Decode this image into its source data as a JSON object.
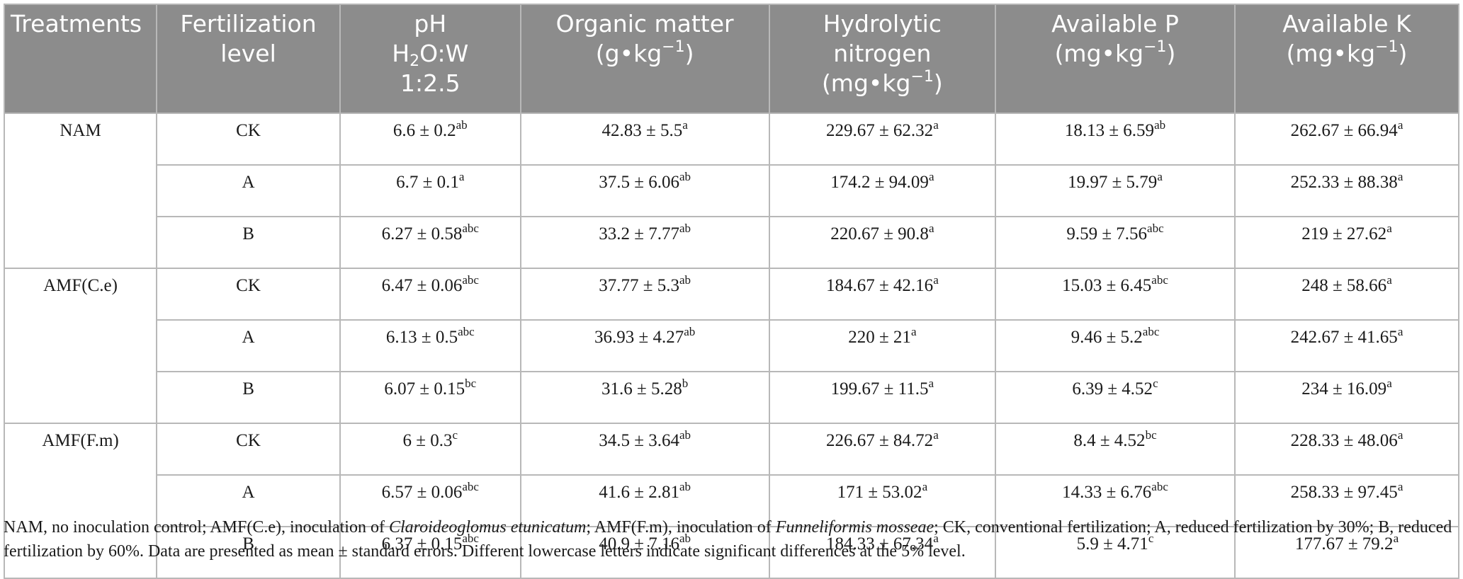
{
  "headers": {
    "treatments": "Treatments",
    "fert_level": [
      "Fertilization",
      "level"
    ],
    "ph": {
      "l1": "pH",
      "l2_pre": "H",
      "l2_sub": "2",
      "l2_post": "O:W",
      "l3": "1:2.5"
    },
    "om": {
      "l1": "Organic matter",
      "l2_pre": "(g•kg",
      "l2_sup": "−1",
      "l2_post": ")"
    },
    "hn": {
      "l1": "Hydrolytic",
      "l2": "nitrogen",
      "l3_pre": "(mg•kg",
      "l3_sup": "−1",
      "l3_post": ")"
    },
    "ap": {
      "l1": "Available P",
      "l2_pre": "(mg•kg",
      "l2_sup": "−1",
      "l2_post": ")"
    },
    "ak": {
      "l1": "Available K",
      "l2_pre": "(mg•kg",
      "l2_sup": "−1",
      "l2_post": ")"
    }
  },
  "groups": [
    {
      "treatment": "NAM",
      "rows": [
        {
          "level": "CK",
          "cells": [
            [
              "6.6 ± 0.2",
              "ab"
            ],
            [
              "42.83 ± 5.5",
              "a"
            ],
            [
              "229.67 ± 62.32",
              "a"
            ],
            [
              "18.13 ± 6.59",
              "ab"
            ],
            [
              "262.67 ± 66.94",
              "a"
            ]
          ]
        },
        {
          "level": "A",
          "cells": [
            [
              "6.7 ± 0.1",
              "a"
            ],
            [
              "37.5 ± 6.06",
              "ab"
            ],
            [
              "174.2 ± 94.09",
              "a"
            ],
            [
              "19.97 ± 5.79",
              "a"
            ],
            [
              "252.33 ± 88.38",
              "a"
            ]
          ]
        },
        {
          "level": "B",
          "cells": [
            [
              "6.27 ± 0.58",
              "abc"
            ],
            [
              "33.2 ± 7.77",
              "ab"
            ],
            [
              "220.67 ± 90.8",
              "a"
            ],
            [
              "9.59 ± 7.56",
              "abc"
            ],
            [
              "219 ± 27.62",
              "a"
            ]
          ]
        }
      ]
    },
    {
      "treatment": "AMF(C.e)",
      "rows": [
        {
          "level": "CK",
          "cells": [
            [
              "6.47 ± 0.06",
              "abc"
            ],
            [
              "37.77 ± 5.3",
              "ab"
            ],
            [
              "184.67 ± 42.16",
              "a"
            ],
            [
              "15.03 ± 6.45",
              "abc"
            ],
            [
              "248 ± 58.66",
              "a"
            ]
          ]
        },
        {
          "level": "A",
          "cells": [
            [
              "6.13 ± 0.5",
              "abc"
            ],
            [
              "36.93 ± 4.27",
              "ab"
            ],
            [
              "220 ± 21",
              "a"
            ],
            [
              "9.46 ± 5.2",
              "abc"
            ],
            [
              "242.67 ± 41.65",
              "a"
            ]
          ]
        },
        {
          "level": "B",
          "cells": [
            [
              "6.07 ± 0.15",
              "bc"
            ],
            [
              "31.6 ± 5.28",
              "b"
            ],
            [
              "199.67 ± 11.5",
              "a"
            ],
            [
              "6.39 ± 4.52",
              "c"
            ],
            [
              "234 ± 16.09",
              "a"
            ]
          ]
        }
      ]
    },
    {
      "treatment": "AMF(F.m)",
      "rows": [
        {
          "level": "CK",
          "cells": [
            [
              "6 ± 0.3",
              "c"
            ],
            [
              "34.5 ± 3.64",
              "ab"
            ],
            [
              "226.67 ± 84.72",
              "a"
            ],
            [
              "8.4 ± 4.52",
              "bc"
            ],
            [
              "228.33 ± 48.06",
              "a"
            ]
          ]
        },
        {
          "level": "A",
          "cells": [
            [
              "6.57 ± 0.06",
              "abc"
            ],
            [
              "41.6 ± 2.81",
              "ab"
            ],
            [
              "171 ± 53.02",
              "a"
            ],
            [
              "14.33 ± 6.76",
              "abc"
            ],
            [
              "258.33 ± 97.45",
              "a"
            ]
          ]
        },
        {
          "level": "B",
          "cells": [
            [
              "6.37 ± 0.15",
              "abc"
            ],
            [
              "40.9 ± 7.16",
              "ab"
            ],
            [
              "184.33 ± 67.34",
              "a"
            ],
            [
              "5.9 ± 4.71",
              "c"
            ],
            [
              "177.67 ± 79.2",
              "a"
            ]
          ]
        }
      ]
    }
  ],
  "footnote": {
    "p1": "NAM, no inoculation control; AMF(C.e), inoculation of ",
    "s1": "Claroideoglomus etunicatum",
    "p2": "; AMF(F.m), inoculation of ",
    "s2": "Funneliformis mosseae",
    "p3": "; CK, conventional fertilization; A, reduced fertilization by 30%; B, reduced fertilization by 60%. Data are presented as mean ± standard errors. Different lowercase letters indicate significant differences at the 5% level."
  }
}
